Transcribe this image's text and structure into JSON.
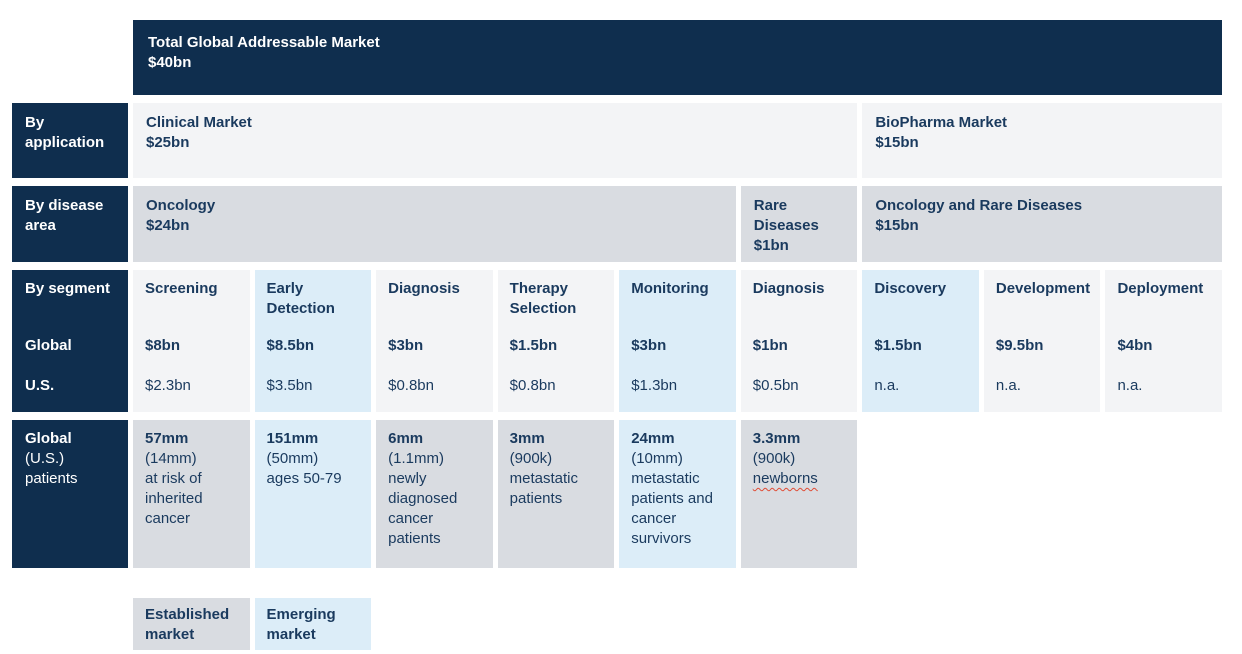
{
  "palette": {
    "navy": "#0f2e4e",
    "text_navy": "#1a3a5e",
    "light_gray": "#f3f4f6",
    "mid_gray": "#d9dce1",
    "light_blue": "#dcedf8",
    "squiggle_red": "#e04a33"
  },
  "header": {
    "title": "Total Global Addressable Market",
    "value": "$40bn"
  },
  "rows": {
    "application": {
      "label": "By application",
      "cells": [
        {
          "title": "Clinical Market",
          "value": "$25bn"
        },
        {
          "title": "BioPharma Market",
          "value": "$15bn"
        }
      ]
    },
    "disease_area": {
      "label": "By disease area",
      "cells": [
        {
          "title": "Oncology",
          "value": "$24bn"
        },
        {
          "title": "Rare Diseases",
          "value": "$1bn"
        },
        {
          "title": "Oncology and Rare Diseases",
          "value": "$15bn"
        }
      ]
    },
    "segment": {
      "label": "By segment",
      "label_global": "Global",
      "label_us": "U.S.",
      "cells": [
        {
          "title": "Screening",
          "global": "$8bn",
          "us": "$2.3bn",
          "tone": "graylight"
        },
        {
          "title": "Early Detection",
          "global": "$8.5bn",
          "us": "$3.5bn",
          "tone": "blue"
        },
        {
          "title": "Diagnosis",
          "global": "$3bn",
          "us": "$0.8bn",
          "tone": "graylight"
        },
        {
          "title": "Therapy Selection",
          "global": "$1.5bn",
          "us": "$0.8bn",
          "tone": "graylight"
        },
        {
          "title": "Monitoring",
          "global": "$3bn",
          "us": "$1.3bn",
          "tone": "blue"
        },
        {
          "title": "Diagnosis",
          "global": "$1bn",
          "us": "$0.5bn",
          "tone": "graylight"
        },
        {
          "title": "Discovery",
          "global": "$1.5bn",
          "us": "n.a.",
          "tone": "blue"
        },
        {
          "title": "Development",
          "global": "$9.5bn",
          "us": "n.a.",
          "tone": "graylight"
        },
        {
          "title": "Deployment",
          "global": "$4bn",
          "us": "n.a.",
          "tone": "graylight"
        }
      ]
    },
    "patients": {
      "label_bold": "Global",
      "label_rest": "(U.S.)\npatients",
      "cells": [
        {
          "bold": "57mm",
          "rest": "(14mm)\nat risk of\ninherited\ncancer",
          "tone": "gray"
        },
        {
          "bold": "151mm",
          "rest": "(50mm)\nages 50-79",
          "tone": "blue"
        },
        {
          "bold": "6mm",
          "rest": "(1.1mm)\nnewly\ndiagnosed\ncancer\npatients",
          "tone": "gray"
        },
        {
          "bold": "3mm",
          "rest": "(900k)\nmetastatic\npatients",
          "tone": "gray"
        },
        {
          "bold": "24mm",
          "rest": "(10mm)\nmetastatic\npatients and\ncancer\nsurvivors",
          "tone": "blue"
        },
        {
          "bold": "3.3mm",
          "rest": "(900k)",
          "misspelled": "newborns",
          "tone": "gray"
        }
      ]
    }
  },
  "legend": [
    {
      "label": "Established market",
      "tone": "gray"
    },
    {
      "label": "Emerging market",
      "tone": "blue"
    }
  ]
}
